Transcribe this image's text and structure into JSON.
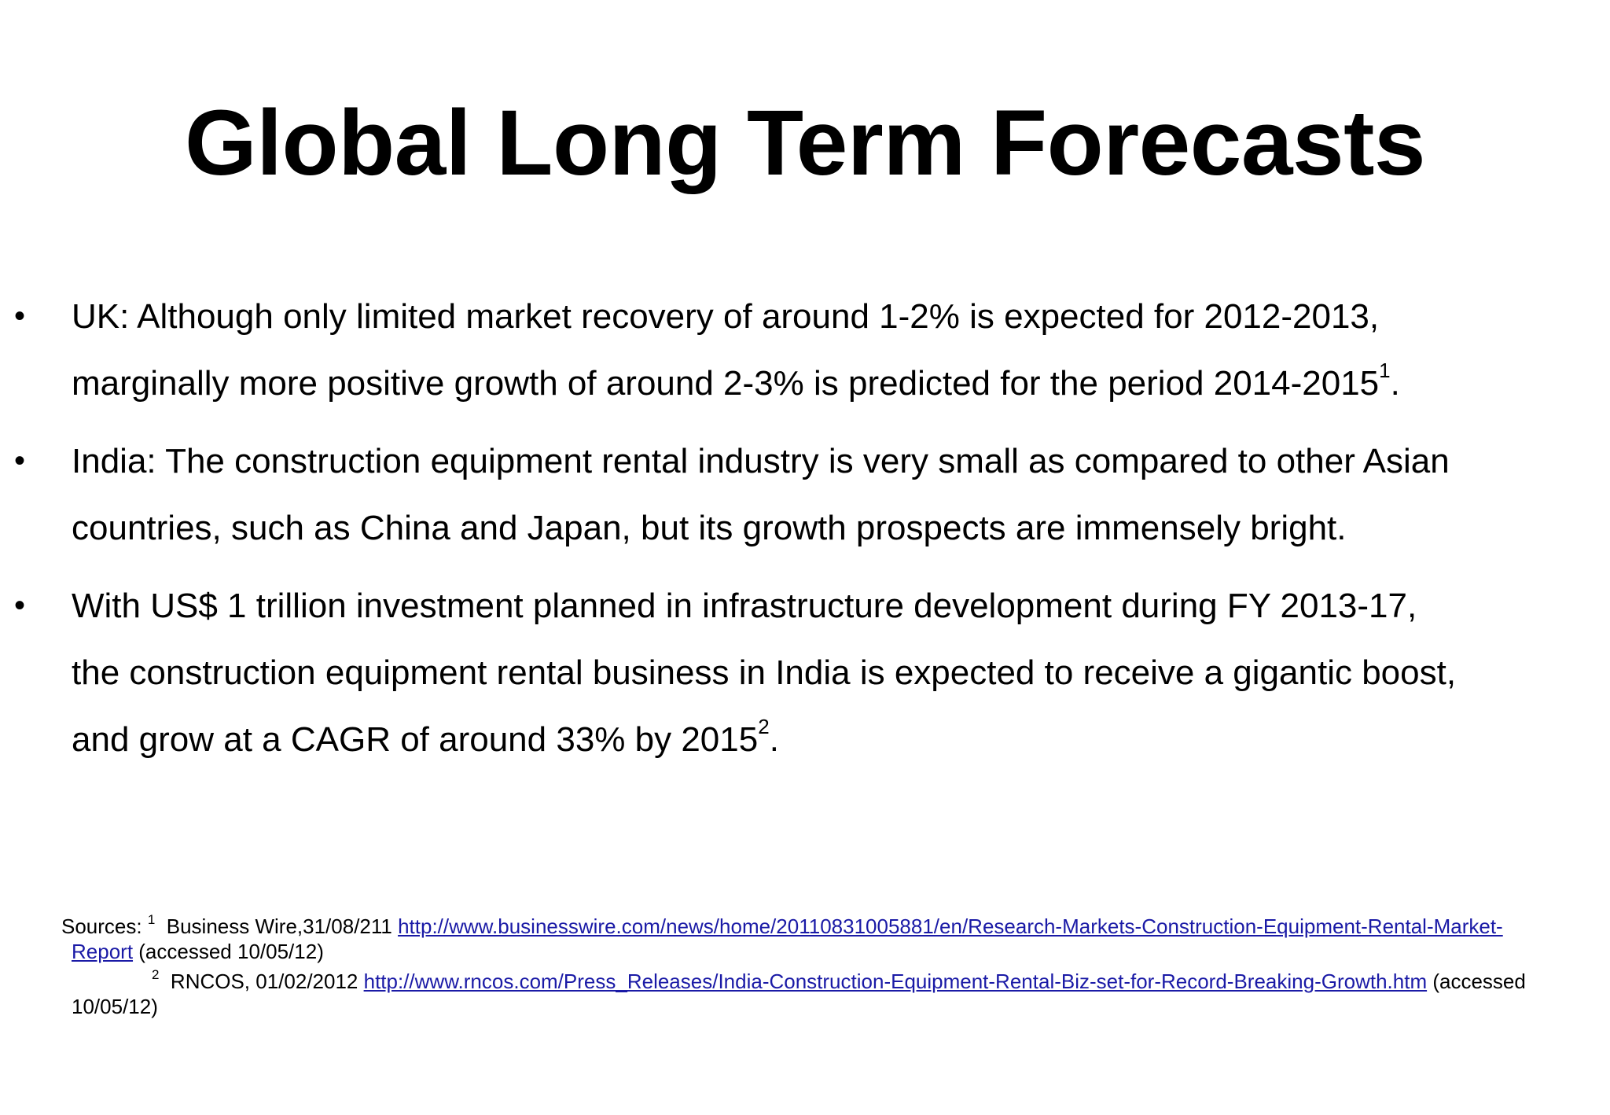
{
  "slide": {
    "title": "Global Long Term Forecasts",
    "bullet_marker": "•",
    "bullets": [
      {
        "line1": "UK: Although only limited market recovery of around 1-2% is expected for 2012-2013,",
        "line2_text": "marginally more positive growth of around 2-3%  is predicted for the period 2014-2015",
        "line2_sup": "1",
        "line2_end": "."
      },
      {
        "line1": "India:  The construction equipment rental industry is very small as compared to other Asian",
        "line2": "countries, such as China and Japan, but its growth prospects are immensely bright."
      },
      {
        "line1": "With US$ 1 trillion investment planned in infrastructure development during FY 2013-17,",
        "line2": "the construction equipment rental business in India is expected to receive a gigantic boost,",
        "line3_text": "and grow at a CAGR of around 33% by 2015",
        "line3_sup": "2",
        "line3_end": "."
      }
    ]
  },
  "sources": {
    "label": "Sources: ",
    "items": [
      {
        "number": "1",
        "text": "  Business Wire,31/08/211 ",
        "link_part1": "http://www.businesswire.com/news/home/20110831005881/en/Research-Markets-Construction-Equipment-Rental-Market-",
        "link_part2": "Report",
        "suffix": " (accessed 10/05/12)"
      },
      {
        "number": "2",
        "text": "  RNCOS, 01/02/2012 ",
        "link": "http://www.rncos.com/Press_Releases/India-Construction-Equipment-Rental-Biz-set-for-Record-Breaking-Growth.htm",
        "suffix_line1": " (accessed",
        "suffix_line2": "10/05/12)"
      }
    ]
  },
  "colors": {
    "text": "#000000",
    "link": "#1a1aa6",
    "background": "#ffffff"
  }
}
